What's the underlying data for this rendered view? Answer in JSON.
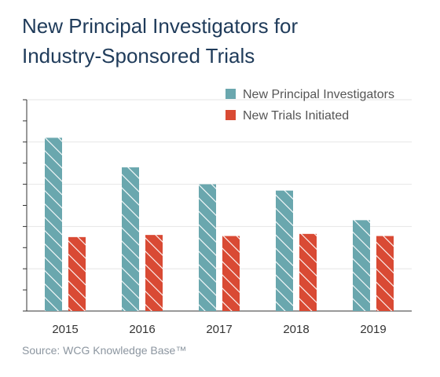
{
  "title_lines": [
    "New Principal Investigators for",
    "Industry-Sponsored Trials"
  ],
  "source": "Source: WCG Knowledge Base™",
  "colors": {
    "new_principal_investigators": "#6aa7ae",
    "new_trials_initiated": "#d94a34",
    "title": "#1f3b5a",
    "gridline": "#e6e6e6",
    "axis": "#333333"
  },
  "chart_data": {
    "type": "bar",
    "title": "New Principal Investigators for Industry-Sponsored Trials",
    "categories": [
      "2015",
      "2016",
      "2017",
      "2018",
      "2019"
    ],
    "series": [
      {
        "name": "New Principal Investigators",
        "values": [
          8.2,
          6.8,
          6.0,
          5.7,
          4.3
        ]
      },
      {
        "name": "New Trials Initiated",
        "values": [
          3.5,
          3.6,
          3.55,
          3.65,
          3.55
        ]
      }
    ],
    "ylim": [
      0,
      10
    ],
    "y_unlabeled": true,
    "grid": true,
    "legend_position": "top-right",
    "bar_fill": "diagonal-hatch"
  }
}
